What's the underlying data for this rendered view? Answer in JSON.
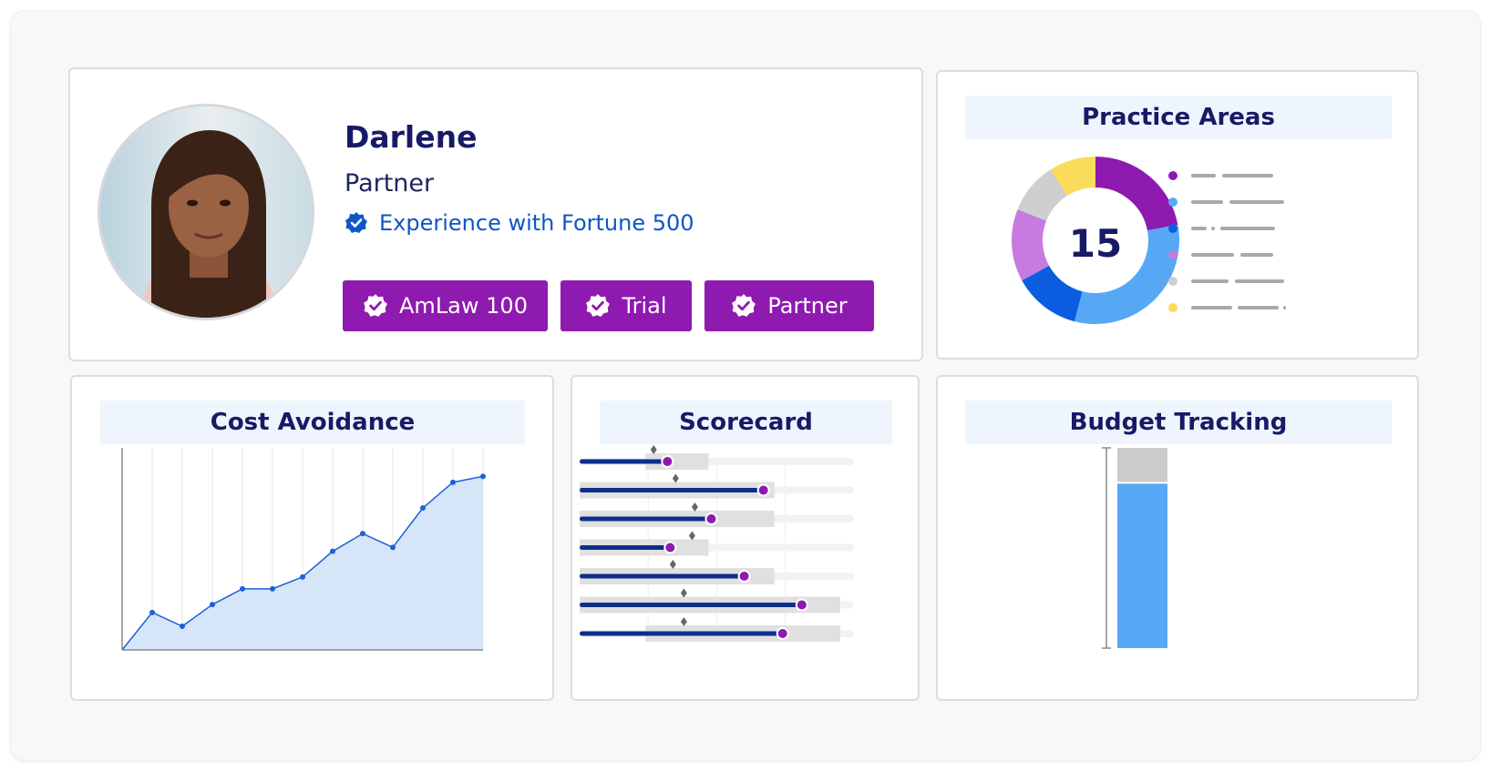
{
  "profile": {
    "name": "Darlene",
    "role": "Partner",
    "experience": "Experience with Fortune 500",
    "tags": [
      "AmLaw 100",
      "Trial",
      "Partner"
    ]
  },
  "practice_areas": {
    "title": "Practice Areas",
    "total": "15",
    "slices": [
      {
        "color": "#8f1ab0",
        "value": 0.22
      },
      {
        "color": "#56a8f5",
        "value": 0.32
      },
      {
        "color": "#0b5de0",
        "value": 0.13
      },
      {
        "color": "#c77be0",
        "value": 0.14
      },
      {
        "color": "#cfcfcf",
        "value": 0.1
      },
      {
        "color": "#fbdc5a",
        "value": 0.09
      }
    ]
  },
  "cost_avoidance": {
    "title": "Cost Avoidance"
  },
  "scorecard": {
    "title": "Scorecard"
  },
  "budget_tracking": {
    "title": "Budget Tracking",
    "used_fraction": 0.83
  },
  "chart_data": [
    {
      "type": "area",
      "title": "Cost Avoidance",
      "x": [
        0,
        1,
        2,
        3,
        4,
        5,
        6,
        7,
        8,
        9,
        10,
        11,
        12
      ],
      "values": [
        0,
        19,
        12,
        23,
        31,
        31,
        37,
        50,
        59,
        52,
        72,
        85,
        88
      ],
      "ylim": [
        0,
        90
      ],
      "grid": "vertical",
      "color": "#1b62d6"
    },
    {
      "type": "bar",
      "title": "Scorecard",
      "orientation": "horizontal",
      "series": [
        {
          "name": "actual",
          "values": [
            32,
            67,
            48,
            33,
            60,
            81,
            74
          ]
        },
        {
          "name": "target",
          "values": [
            27,
            35,
            42,
            41,
            34,
            38,
            38
          ]
        },
        {
          "name": "range",
          "values": [
            [
              24,
              47
            ],
            [
              0,
              71
            ],
            [
              0,
              71
            ],
            [
              0,
              47
            ],
            [
              0,
              71
            ],
            [
              0,
              95
            ],
            [
              24,
              95
            ]
          ]
        }
      ],
      "xlim": [
        0,
        100
      ],
      "colors": {
        "actual": "#0c2f8a",
        "marker": "#8f1ab0",
        "target": "#666666",
        "range": "#dedede"
      }
    },
    {
      "type": "bar",
      "title": "Budget Tracking",
      "categories": [
        ""
      ],
      "series": [
        {
          "name": "used",
          "values": [
            83
          ]
        },
        {
          "name": "remaining",
          "values": [
            17
          ]
        }
      ],
      "ylim": [
        0,
        100
      ],
      "colors": {
        "used": "#56a8f5",
        "remaining": "#cbcbcb"
      }
    }
  ]
}
